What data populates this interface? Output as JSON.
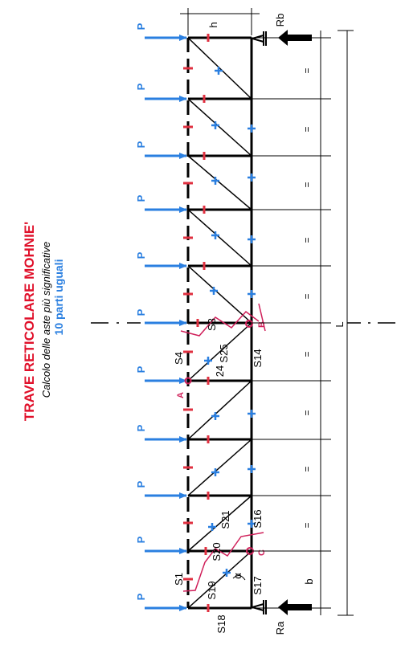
{
  "title": "TRAVE RETICOLARE MOHNIE'",
  "subtitle": "Calcolo delle aste più significative",
  "note": "10 parti uguali",
  "load_label": "P",
  "dim_h": "h",
  "dim_L": "L",
  "dim_b": "b",
  "equal_sign": "=",
  "alpha": "α",
  "reaction_top": "Rb",
  "reaction_bottom": "Ra",
  "bar_labels": {
    "s1": "S1",
    "s3": "S3",
    "s4": "S4",
    "s14": "S14",
    "s16": "S16",
    "s17": "S17",
    "s18": "S18",
    "s19": "S19",
    "s20": "S20",
    "s21": "S21",
    "s24": "24",
    "s25": "S25"
  },
  "points": {
    "a": "A",
    "b": "B",
    "c": "C"
  },
  "colors": {
    "arrow": "#2a7fe0",
    "plus": "#2a7fe0",
    "minus": "#e03040",
    "title": "#e0102a",
    "section": "#d0205a",
    "structure": "#000000"
  }
}
